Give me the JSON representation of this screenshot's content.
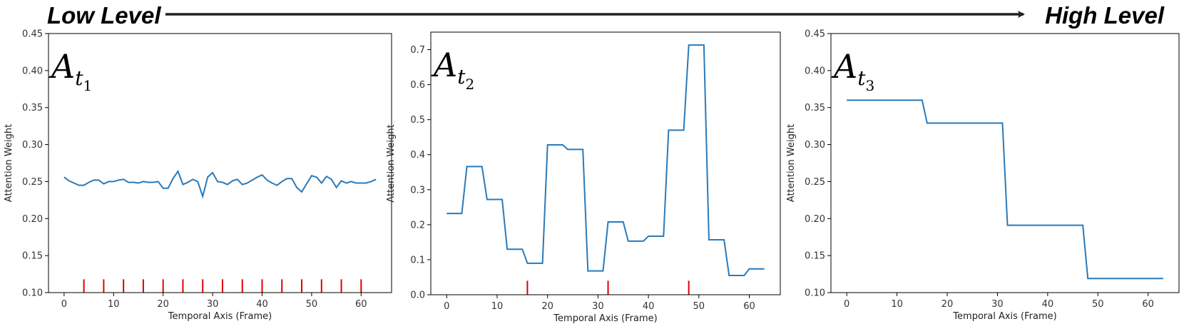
{
  "banner": {
    "left": "Low Level",
    "right": "High Level"
  },
  "colors": {
    "line": "#2a7ab9",
    "marker": "#e00000",
    "arrow": "#222222",
    "frame": "#000000"
  },
  "chart_data": [
    {
      "type": "line",
      "panel_label": {
        "main": "A",
        "sub": "t",
        "subsub": "1"
      },
      "xlabel": "Temporal Axis (Frame)",
      "ylabel": "Attention Weight",
      "xlim": [
        -3.15,
        66.15
      ],
      "ylim": [
        0.1,
        0.45
      ],
      "xticks": [
        0,
        10,
        20,
        30,
        40,
        50,
        60
      ],
      "yticks": [
        0.1,
        0.15,
        0.2,
        0.25,
        0.3,
        0.35,
        0.4,
        0.45
      ],
      "ytick_decimals": 2,
      "marker_height": 0.018,
      "x": [
        0,
        1,
        2,
        3,
        4,
        5,
        6,
        7,
        8,
        9,
        10,
        11,
        12,
        13,
        14,
        15,
        16,
        17,
        18,
        19,
        20,
        21,
        22,
        23,
        24,
        25,
        26,
        27,
        28,
        29,
        30,
        31,
        32,
        33,
        34,
        35,
        36,
        37,
        38,
        39,
        40,
        41,
        42,
        43,
        44,
        45,
        46,
        47,
        48,
        49,
        50,
        51,
        52,
        53,
        54,
        55,
        56,
        57,
        58,
        59,
        60,
        61,
        62,
        63
      ],
      "values": [
        0.256,
        0.251,
        0.248,
        0.245,
        0.245,
        0.249,
        0.252,
        0.252,
        0.247,
        0.25,
        0.25,
        0.252,
        0.253,
        0.249,
        0.249,
        0.248,
        0.25,
        0.249,
        0.249,
        0.25,
        0.241,
        0.241,
        0.254,
        0.264,
        0.246,
        0.249,
        0.253,
        0.25,
        0.23,
        0.256,
        0.262,
        0.25,
        0.249,
        0.246,
        0.251,
        0.253,
        0.246,
        0.248,
        0.252,
        0.256,
        0.259,
        0.252,
        0.248,
        0.245,
        0.25,
        0.254,
        0.254,
        0.242,
        0.236,
        0.247,
        0.258,
        0.256,
        0.248,
        0.257,
        0.253,
        0.242,
        0.251,
        0.248,
        0.25,
        0.248,
        0.248,
        0.248,
        0.25,
        0.253
      ],
      "markers": [
        4,
        8,
        12,
        16,
        20,
        24,
        28,
        32,
        36,
        40,
        44,
        48,
        52,
        56,
        60
      ]
    },
    {
      "type": "line",
      "panel_label": {
        "main": "A",
        "sub": "t",
        "subsub": "2"
      },
      "xlabel": "Temporal Axis (Frame)",
      "ylabel": "Attention Weight",
      "xlim": [
        -3.15,
        66.15
      ],
      "ylim": [
        0.0,
        0.75
      ],
      "xticks": [
        0,
        10,
        20,
        30,
        40,
        50,
        60
      ],
      "yticks": [
        0.0,
        0.1,
        0.2,
        0.3,
        0.4,
        0.5,
        0.6,
        0.7
      ],
      "ytick_decimals": 1,
      "marker_height": 0.04,
      "x": [
        0,
        1,
        2,
        3,
        4,
        5,
        6,
        7,
        8,
        9,
        10,
        11,
        12,
        13,
        14,
        15,
        16,
        17,
        18,
        19,
        20,
        21,
        22,
        23,
        24,
        25,
        26,
        27,
        28,
        29,
        30,
        31,
        32,
        33,
        34,
        35,
        36,
        37,
        38,
        39,
        40,
        41,
        42,
        43,
        44,
        45,
        46,
        47,
        48,
        49,
        50,
        51,
        52,
        53,
        54,
        55,
        56,
        57,
        58,
        59,
        60,
        61,
        62,
        63
      ],
      "values": [
        0.232,
        0.232,
        0.232,
        0.232,
        0.366,
        0.366,
        0.366,
        0.366,
        0.272,
        0.272,
        0.272,
        0.272,
        0.13,
        0.13,
        0.13,
        0.13,
        0.09,
        0.09,
        0.09,
        0.09,
        0.428,
        0.428,
        0.428,
        0.428,
        0.415,
        0.415,
        0.415,
        0.415,
        0.068,
        0.068,
        0.068,
        0.068,
        0.208,
        0.208,
        0.208,
        0.208,
        0.153,
        0.153,
        0.153,
        0.153,
        0.167,
        0.167,
        0.167,
        0.167,
        0.47,
        0.47,
        0.47,
        0.47,
        0.713,
        0.713,
        0.713,
        0.713,
        0.157,
        0.157,
        0.157,
        0.157,
        0.055,
        0.055,
        0.055,
        0.055,
        0.074,
        0.074,
        0.074,
        0.074
      ],
      "markers": [
        16,
        32,
        48
      ]
    },
    {
      "type": "line",
      "panel_label": {
        "main": "A",
        "sub": "t",
        "subsub": "3"
      },
      "xlabel": "Temporal Axis (Frame)",
      "ylabel": "Attention Weight",
      "xlim": [
        -3.15,
        66.15
      ],
      "ylim": [
        0.1,
        0.45
      ],
      "xticks": [
        0,
        10,
        20,
        30,
        40,
        50,
        60
      ],
      "yticks": [
        0.1,
        0.15,
        0.2,
        0.25,
        0.3,
        0.35,
        0.4,
        0.45
      ],
      "ytick_decimals": 2,
      "marker_height": 0.018,
      "x": [
        0,
        15,
        16,
        31,
        32,
        47,
        48,
        63
      ],
      "values": [
        0.36,
        0.36,
        0.329,
        0.329,
        0.191,
        0.191,
        0.119,
        0.119
      ],
      "markers": []
    }
  ]
}
